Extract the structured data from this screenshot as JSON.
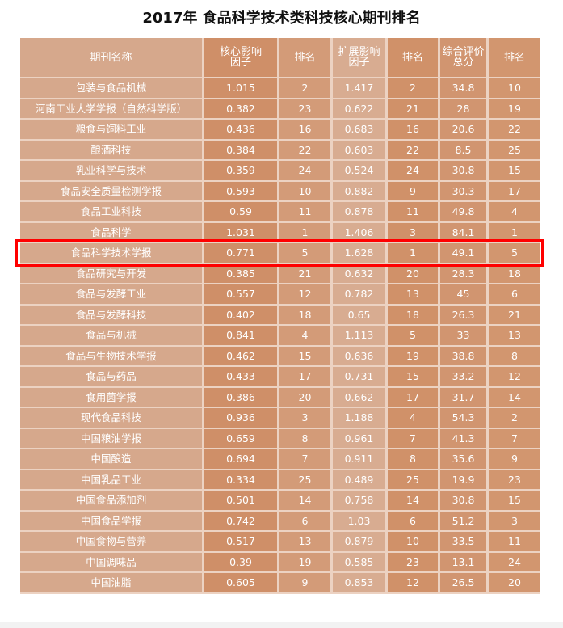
{
  "title": "2017年 食品科学技术类科技核心期刊排名",
  "colors": {
    "highlight": "#ff0000",
    "cell_light": "#d6a88c",
    "cell_dark": "#cf8f68",
    "text": "#ffffff"
  },
  "highlighted_row": 8,
  "headers": [
    "期刊名称",
    "核心影响\n因子",
    "排名",
    "扩展影响\n因子",
    "排名",
    "综合评价\n总分",
    "排名"
  ],
  "rows": [
    [
      "包装与食品机械",
      "1.015",
      "2",
      "1.417",
      "2",
      "34.8",
      "10"
    ],
    [
      "河南工业大学学报（自然科学版）",
      "0.382",
      "23",
      "0.622",
      "21",
      "28",
      "19"
    ],
    [
      "粮食与饲料工业",
      "0.436",
      "16",
      "0.683",
      "16",
      "20.6",
      "22"
    ],
    [
      "酿酒科技",
      "0.384",
      "22",
      "0.603",
      "22",
      "8.5",
      "25"
    ],
    [
      "乳业科学与技术",
      "0.359",
      "24",
      "0.524",
      "24",
      "30.8",
      "15"
    ],
    [
      "食品安全质量检测学报",
      "0.593",
      "10",
      "0.882",
      "9",
      "30.3",
      "17"
    ],
    [
      "食品工业科技",
      "0.59",
      "11",
      "0.878",
      "11",
      "49.8",
      "4"
    ],
    [
      "食品科学",
      "1.031",
      "1",
      "1.406",
      "3",
      "84.1",
      "1"
    ],
    [
      "食品科学技术学报",
      "0.771",
      "5",
      "1.628",
      "1",
      "49.1",
      "5"
    ],
    [
      "食品研究与开发",
      "0.385",
      "21",
      "0.632",
      "20",
      "28.3",
      "18"
    ],
    [
      "食品与发酵工业",
      "0.557",
      "12",
      "0.782",
      "13",
      "45",
      "6"
    ],
    [
      "食品与发酵科技",
      "0.402",
      "18",
      "0.65",
      "18",
      "26.3",
      "21"
    ],
    [
      "食品与机械",
      "0.841",
      "4",
      "1.113",
      "5",
      "33",
      "13"
    ],
    [
      "食品与生物技术学报",
      "0.462",
      "15",
      "0.636",
      "19",
      "38.8",
      "8"
    ],
    [
      "食品与药品",
      "0.433",
      "17",
      "0.731",
      "15",
      "33.2",
      "12"
    ],
    [
      "食用菌学报",
      "0.386",
      "20",
      "0.662",
      "17",
      "31.7",
      "14"
    ],
    [
      "现代食品科技",
      "0.936",
      "3",
      "1.188",
      "4",
      "54.3",
      "2"
    ],
    [
      "中国粮油学报",
      "0.659",
      "8",
      "0.961",
      "7",
      "41.3",
      "7"
    ],
    [
      "中国酿造",
      "0.694",
      "7",
      "0.911",
      "8",
      "35.6",
      "9"
    ],
    [
      "中国乳品工业",
      "0.334",
      "25",
      "0.489",
      "25",
      "19.9",
      "23"
    ],
    [
      "中国食品添加剂",
      "0.501",
      "14",
      "0.758",
      "14",
      "30.8",
      "15"
    ],
    [
      "中国食品学报",
      "0.742",
      "6",
      "1.03",
      "6",
      "51.2",
      "3"
    ],
    [
      "中国食物与营养",
      "0.517",
      "13",
      "0.879",
      "10",
      "33.5",
      "11"
    ],
    [
      "中国调味品",
      "0.39",
      "19",
      "0.585",
      "23",
      "13.1",
      "24"
    ],
    [
      "中国油脂",
      "0.605",
      "9",
      "0.853",
      "12",
      "26.5",
      "20"
    ]
  ]
}
